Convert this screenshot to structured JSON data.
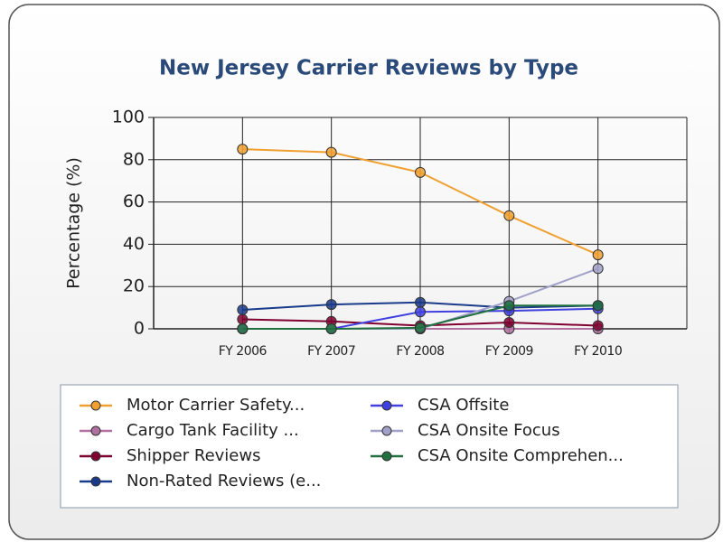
{
  "chart_data": {
    "type": "line",
    "title": "New Jersey  Carrier Reviews by Type",
    "y_label": "Percentage (%)",
    "categories": [
      "FY 2006",
      "FY 2007",
      "FY 2008",
      "FY 2009",
      "FY 2010"
    ],
    "ylim": [
      0,
      100
    ],
    "yticks": [
      0,
      20,
      40,
      60,
      80,
      100
    ],
    "grid": true,
    "series": [
      {
        "name": "Motor Carrier Safety...",
        "color": "#f0a030",
        "values": [
          85,
          83.5,
          74,
          53.5,
          35
        ]
      },
      {
        "name": "Cargo Tank Facility ...",
        "color": "#b070a0",
        "values": [
          0,
          0,
          0,
          0,
          0
        ]
      },
      {
        "name": "Shipper Reviews",
        "color": "#800030",
        "values": [
          4.5,
          3.5,
          1.5,
          3,
          1.5
        ]
      },
      {
        "name": "Non-Rated Reviews (e...",
        "color": "#1a3a8a",
        "values": [
          9,
          11.5,
          12.5,
          10,
          11
        ]
      },
      {
        "name": "CSA Offsite",
        "color": "#4040e0",
        "values": [
          0,
          0,
          8,
          8.5,
          9.5
        ]
      },
      {
        "name": "CSA Onsite Focus",
        "color": "#a0a0c8",
        "values": [
          0,
          0,
          0,
          13,
          28.5
        ]
      },
      {
        "name": "CSA Onsite Comprehen...",
        "color": "#207040",
        "values": [
          0,
          0,
          0.5,
          11,
          11
        ]
      }
    ]
  }
}
